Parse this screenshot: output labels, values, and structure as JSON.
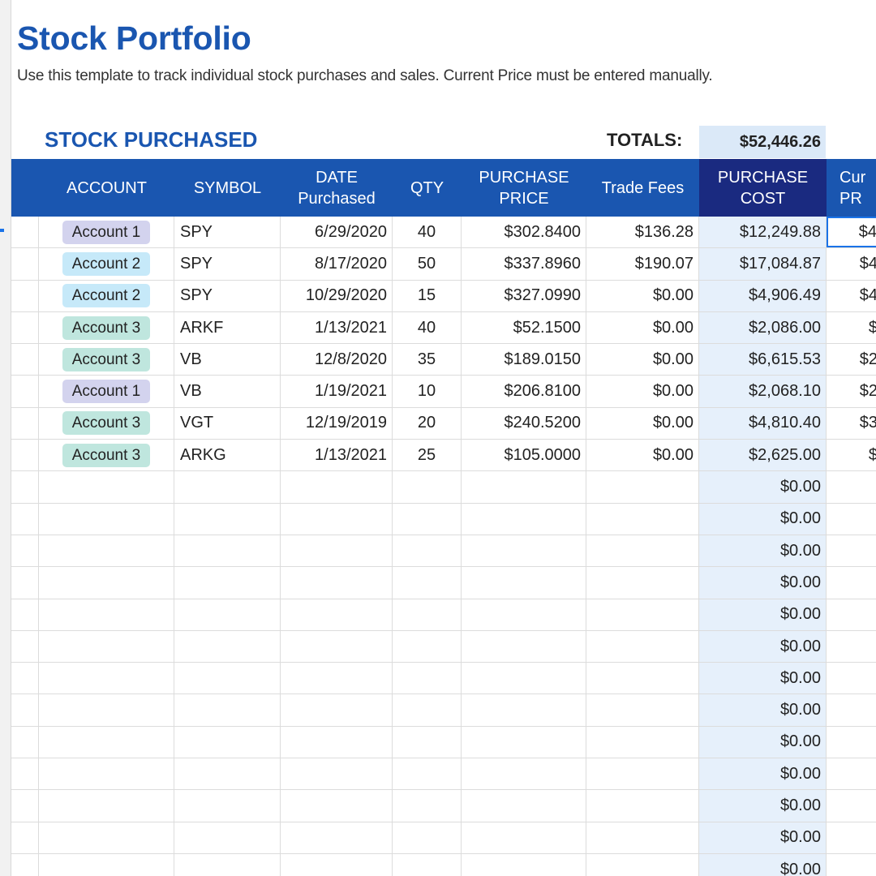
{
  "title": "Stock Portfolio",
  "subtitle": "Use this template to track individual stock purchases and sales. Current Price must be entered manually.",
  "section_title": "STOCK PURCHASED",
  "totals_label": "TOTALS:",
  "totals_value": "$52,446.26",
  "colors": {
    "brand_blue": "#1a56b0",
    "header_dark": "#1a2a80",
    "cost_column_bg": "#e6f0fb",
    "account_1": "#d3d3ee",
    "account_2": "#c6e9f9",
    "account_3": "#bfe6de"
  },
  "columns": [
    {
      "label": "ACCOUNT"
    },
    {
      "label": "SYMBOL"
    },
    {
      "label": "DATE\nPurchased"
    },
    {
      "label": "QTY"
    },
    {
      "label": "PURCHASE\nPRICE"
    },
    {
      "label": "Trade Fees"
    },
    {
      "label": "PURCHASE\nCOST"
    },
    {
      "label": "Cur\nPR"
    }
  ],
  "rows": [
    {
      "account": "Account 1",
      "account_color": "#d3d3ee",
      "symbol": "SPY",
      "date": "6/29/2020",
      "qty": "40",
      "price": "$302.8400",
      "fees": "$136.28",
      "cost": "$12,249.88",
      "current": "$4"
    },
    {
      "account": "Account 2",
      "account_color": "#c6e9f9",
      "symbol": "SPY",
      "date": "8/17/2020",
      "qty": "50",
      "price": "$337.8960",
      "fees": "$190.07",
      "cost": "$17,084.87",
      "current": "$4"
    },
    {
      "account": "Account 2",
      "account_color": "#c6e9f9",
      "symbol": "SPY",
      "date": "10/29/2020",
      "qty": "15",
      "price": "$327.0990",
      "fees": "$0.00",
      "cost": "$4,906.49",
      "current": "$4"
    },
    {
      "account": "Account 3",
      "account_color": "#bfe6de",
      "symbol": "ARKF",
      "date": "1/13/2021",
      "qty": "40",
      "price": "$52.1500",
      "fees": "$0.00",
      "cost": "$2,086.00",
      "current": "$"
    },
    {
      "account": "Account 3",
      "account_color": "#bfe6de",
      "symbol": "VB",
      "date": "12/8/2020",
      "qty": "35",
      "price": "$189.0150",
      "fees": "$0.00",
      "cost": "$6,615.53",
      "current": "$2"
    },
    {
      "account": "Account 1",
      "account_color": "#d3d3ee",
      "symbol": "VB",
      "date": "1/19/2021",
      "qty": "10",
      "price": "$206.8100",
      "fees": "$0.00",
      "cost": "$2,068.10",
      "current": "$2"
    },
    {
      "account": "Account 3",
      "account_color": "#bfe6de",
      "symbol": "VGT",
      "date": "12/19/2019",
      "qty": "20",
      "price": "$240.5200",
      "fees": "$0.00",
      "cost": "$4,810.40",
      "current": "$3"
    },
    {
      "account": "Account 3",
      "account_color": "#bfe6de",
      "symbol": "ARKG",
      "date": "1/13/2021",
      "qty": "25",
      "price": "$105.0000",
      "fees": "$0.00",
      "cost": "$2,625.00",
      "current": "$"
    }
  ],
  "empty_rows": [
    {
      "cost": "$0.00"
    },
    {
      "cost": "$0.00"
    },
    {
      "cost": "$0.00"
    },
    {
      "cost": "$0.00"
    },
    {
      "cost": "$0.00"
    },
    {
      "cost": "$0.00"
    },
    {
      "cost": "$0.00"
    },
    {
      "cost": "$0.00"
    },
    {
      "cost": "$0.00"
    },
    {
      "cost": "$0.00"
    },
    {
      "cost": "$0.00"
    },
    {
      "cost": "$0.00"
    },
    {
      "cost": "$0.00"
    }
  ]
}
